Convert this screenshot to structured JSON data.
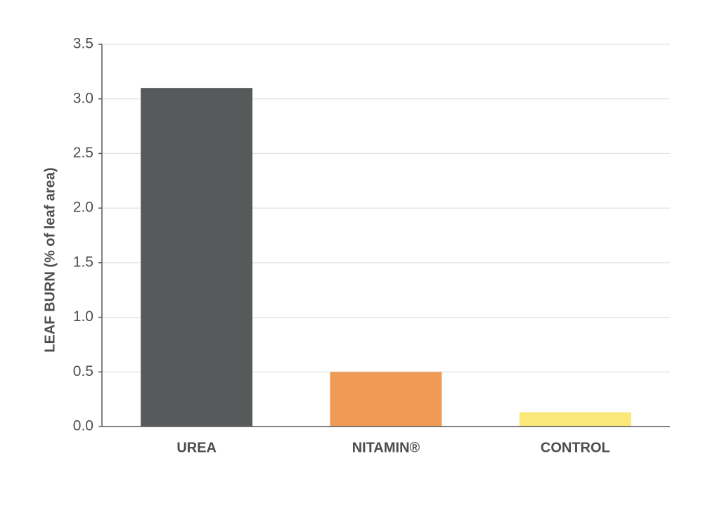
{
  "chart_data": {
    "type": "bar",
    "y_label": "LEAF BURN (% of leaf area)",
    "categories": [
      "UREA",
      "NITAMIN®",
      "CONTROL"
    ],
    "values": [
      3.1,
      0.5,
      0.13
    ],
    "colors": [
      "#58595b",
      "#ef9a55",
      "#fbe87a"
    ],
    "ylim": [
      0,
      3.5
    ],
    "yticks": [
      {
        "value": 0,
        "label": "0.0"
      },
      0.5,
      {
        "value": 1,
        "label": "1.0"
      },
      1.5,
      {
        "value": 2,
        "label": "2.0"
      },
      2.5,
      {
        "value": 3,
        "label": "3.0"
      },
      3.5
    ],
    "grid": true
  }
}
